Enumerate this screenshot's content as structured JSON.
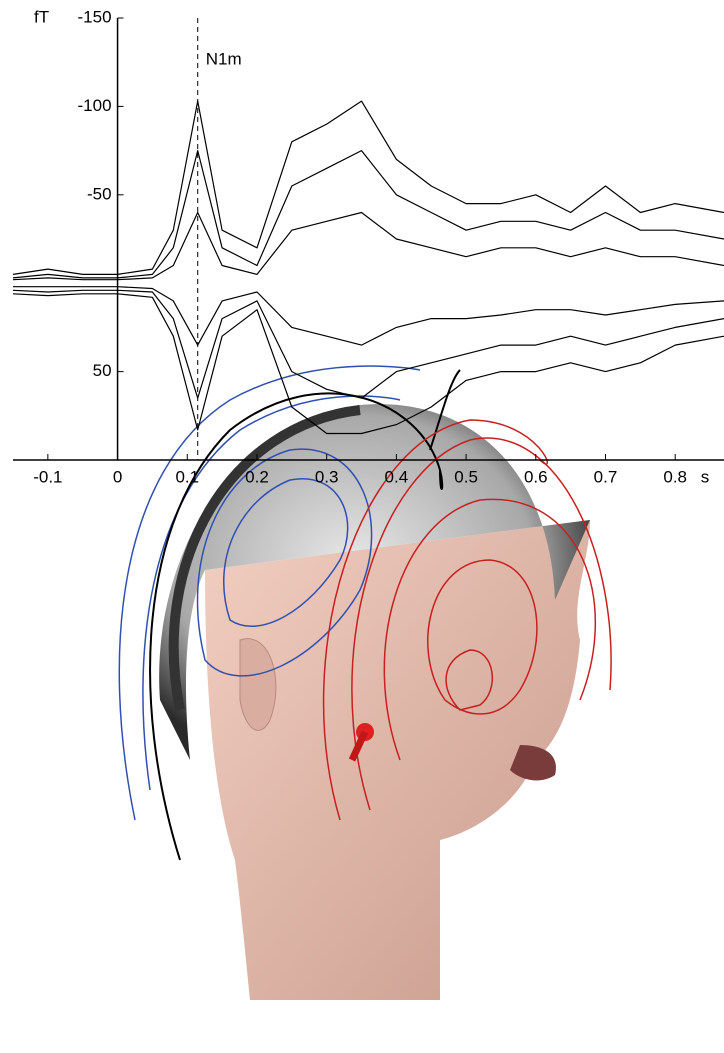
{
  "chart_data": {
    "type": "line",
    "x_label": "s",
    "y_label": "fT",
    "annotations": [
      {
        "text": "N1m",
        "x": 0.115
      }
    ],
    "x": [
      -0.15,
      -0.1,
      -0.05,
      0,
      0.05,
      0.08,
      0.115,
      0.15,
      0.2,
      0.25,
      0.3,
      0.35,
      0.4,
      0.45,
      0.5,
      0.55,
      0.6,
      0.65,
      0.7,
      0.75,
      0.8,
      0.87
    ],
    "series": [
      {
        "color": "#000000",
        "values": [
          -5,
          -8,
          -5,
          -5,
          -8,
          -30,
          -103,
          -30,
          -20,
          -80,
          -90,
          -103,
          -70,
          -55,
          -45,
          -45,
          -50,
          -40,
          -55,
          -40,
          -45,
          -40
        ]
      },
      {
        "color": "#000000",
        "values": [
          -3,
          -5,
          -3,
          -3,
          -5,
          -20,
          -75,
          -20,
          -10,
          -55,
          -65,
          -75,
          -50,
          -40,
          -30,
          -35,
          -35,
          -30,
          -40,
          -30,
          -30,
          -25
        ]
      },
      {
        "color": "#000000",
        "values": [
          -2,
          -3,
          -2,
          -2,
          -3,
          -10,
          -40,
          -10,
          -5,
          -30,
          -35,
          -40,
          -25,
          -20,
          -15,
          -20,
          -20,
          -15,
          -20,
          -15,
          -15,
          -10
        ]
      },
      {
        "color": "#000000",
        "values": [
          2,
          2,
          2,
          2,
          3,
          10,
          35,
          10,
          5,
          25,
          30,
          35,
          25,
          20,
          20,
          18,
          15,
          15,
          18,
          15,
          12,
          10
        ]
      },
      {
        "color": "#000000",
        "values": [
          4,
          5,
          4,
          4,
          5,
          20,
          65,
          20,
          10,
          50,
          60,
          65,
          50,
          45,
          40,
          35,
          35,
          30,
          35,
          30,
          25,
          20
        ]
      },
      {
        "color": "#000000",
        "values": [
          6,
          7,
          6,
          6,
          8,
          30,
          83,
          30,
          15,
          70,
          85,
          85,
          80,
          70,
          55,
          50,
          50,
          45,
          50,
          45,
          35,
          30
        ]
      }
    ],
    "xlim": [
      -0.15,
      0.87
    ],
    "xticks": [
      -0.1,
      0,
      0.1,
      0.2,
      0.3,
      0.4,
      0.5,
      0.6,
      0.7,
      0.8
    ],
    "ylim": [
      -150,
      100
    ],
    "yticks": [
      -150,
      -100,
      -50,
      50
    ],
    "y_inverted_up_negative": true
  }
}
